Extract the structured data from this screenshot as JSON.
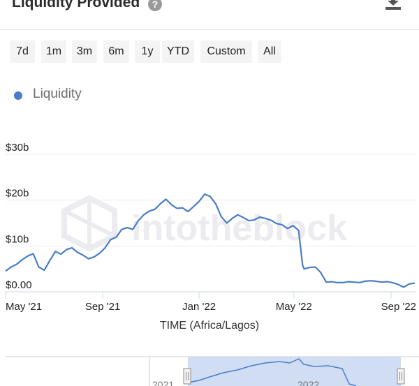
{
  "header": {
    "title": "Liquidity Provided",
    "help_icon": "question-circle-icon",
    "download_icon": "download-icon"
  },
  "range_buttons": [
    "7d",
    "1m",
    "3m",
    "6m",
    "1y",
    "YTD",
    "Custom",
    "All"
  ],
  "legend": {
    "label": "Liquidity",
    "color": "#4a7cc8"
  },
  "watermark": "intotheblock",
  "chart_data": {
    "type": "line",
    "title": "",
    "xlabel": "TIME (Africa/Lagos)",
    "ylabel": "",
    "y_ticks": [
      "$0.00",
      "$10b",
      "$20b",
      "$30b"
    ],
    "y_tick_values": [
      0,
      10,
      20,
      30
    ],
    "ylim": [
      0,
      30
    ],
    "x_ticks": [
      "May '21",
      "Sep '21",
      "Jan '22",
      "May '22",
      "Sep '22"
    ],
    "grid": true,
    "series": [
      {
        "name": "Liquidity",
        "color": "#4a7cc8",
        "x": [
          "2021-05-01",
          "2021-05-08",
          "2021-05-15",
          "2021-05-22",
          "2021-05-29",
          "2021-06-05",
          "2021-06-12",
          "2021-06-19",
          "2021-06-26",
          "2021-07-03",
          "2021-07-10",
          "2021-07-17",
          "2021-07-24",
          "2021-07-31",
          "2021-08-07",
          "2021-08-14",
          "2021-08-21",
          "2021-08-28",
          "2021-09-04",
          "2021-09-11",
          "2021-09-18",
          "2021-09-25",
          "2021-10-02",
          "2021-10-09",
          "2021-10-16",
          "2021-10-23",
          "2021-10-30",
          "2021-11-06",
          "2021-11-13",
          "2021-11-20",
          "2021-11-27",
          "2021-12-04",
          "2021-12-11",
          "2021-12-18",
          "2021-12-25",
          "2022-01-01",
          "2022-01-08",
          "2022-01-15",
          "2022-01-22",
          "2022-01-29",
          "2022-02-05",
          "2022-02-12",
          "2022-02-19",
          "2022-02-26",
          "2022-03-05",
          "2022-03-12",
          "2022-03-19",
          "2022-03-26",
          "2022-04-02",
          "2022-04-09",
          "2022-04-16",
          "2022-04-23",
          "2022-04-30",
          "2022-05-07",
          "2022-05-12",
          "2022-05-14",
          "2022-05-21",
          "2022-05-28",
          "2022-06-04",
          "2022-06-11",
          "2022-06-18",
          "2022-06-25",
          "2022-07-02",
          "2022-07-09",
          "2022-07-16",
          "2022-07-23",
          "2022-07-30",
          "2022-08-06",
          "2022-08-13",
          "2022-08-20",
          "2022-08-27",
          "2022-09-03",
          "2022-09-10",
          "2022-09-17",
          "2022-09-24",
          "2022-10-01"
        ],
        "values": [
          4.5,
          5.4,
          6.0,
          7.0,
          7.8,
          8.3,
          5.4,
          4.7,
          6.8,
          8.8,
          8.2,
          9.2,
          9.6,
          8.6,
          8.0,
          7.2,
          7.6,
          8.4,
          9.6,
          11.4,
          11.9,
          13.6,
          14.0,
          13.6,
          15.5,
          16.8,
          17.6,
          18.0,
          19.2,
          20.2,
          19.0,
          18.2,
          18.3,
          17.5,
          18.6,
          19.7,
          21.3,
          20.8,
          19.2,
          16.4,
          15.0,
          16.0,
          16.8,
          16.2,
          15.5,
          15.7,
          16.3,
          16.0,
          15.6,
          14.9,
          14.6,
          13.8,
          14.4,
          13.4,
          5.8,
          5.0,
          5.3,
          5.4,
          4.2,
          2.1,
          2.2,
          2.0,
          2.0,
          2.2,
          2.1,
          2.0,
          2.3,
          2.4,
          2.3,
          2.1,
          2.2,
          2.0,
          1.6,
          1.0,
          1.7,
          1.9
        ]
      }
    ]
  },
  "navigator": {
    "year_labels": [
      "2021",
      "2022"
    ],
    "selected_range": [
      "2021-05-01",
      "2022-10-01"
    ]
  }
}
